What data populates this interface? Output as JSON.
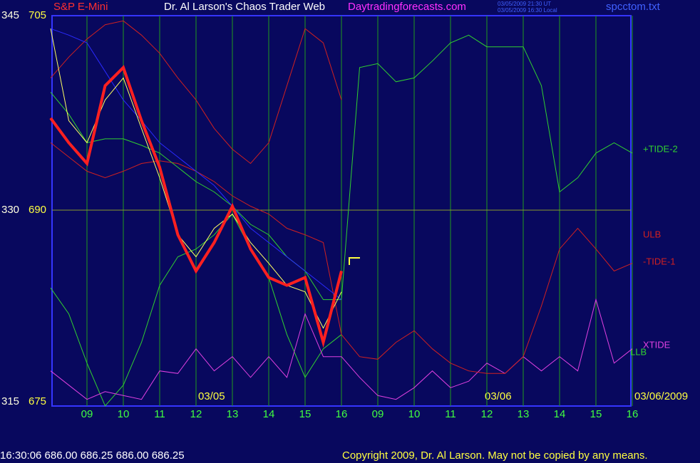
{
  "header": {
    "symbol": "S&P E-Mini",
    "title": "Dr. Al Larson's Chaos Trader Web",
    "site": "Daytradingforecasts.com",
    "stamp_ut": "03/05/2009 21:30 UT",
    "stamp_local": "03/05/2009 16:30 Local",
    "file": "spcctom.txt"
  },
  "footer": {
    "quote": "16:30:06  686.00 686.25 686.00 686.25",
    "copyright": "Copyright 2009, Dr. Al Larson. May not be copied by any means."
  },
  "chart_data": {
    "type": "line",
    "x": [
      0,
      0.5,
      1,
      1.5,
      2,
      2.5,
      3,
      3.5,
      4,
      4.5,
      5,
      5.5,
      6,
      6.5,
      7,
      7.5,
      8,
      8.5,
      9,
      9.5,
      10,
      10.5,
      11,
      11.5,
      12,
      12.5,
      13,
      13.5,
      14,
      14.5,
      15,
      15.5,
      16
    ],
    "xlim": [
      0,
      16.2
    ],
    "xticks": [
      {
        "value": 1,
        "label": "09"
      },
      {
        "value": 2,
        "label": "10"
      },
      {
        "value": 3,
        "label": "11"
      },
      {
        "value": 4,
        "label": "12"
      },
      {
        "value": 5,
        "label": "13"
      },
      {
        "value": 6,
        "label": "14"
      },
      {
        "value": 7,
        "label": "15"
      },
      {
        "value": 8,
        "label": "16"
      },
      {
        "value": 9,
        "label": "09"
      },
      {
        "value": 10,
        "label": "10"
      },
      {
        "value": 11,
        "label": "11"
      },
      {
        "value": 12,
        "label": "12"
      },
      {
        "value": 13,
        "label": "13"
      },
      {
        "value": 14,
        "label": "14"
      },
      {
        "value": 15,
        "label": "15"
      },
      {
        "value": 16,
        "label": "16"
      }
    ],
    "ylim": [
      675,
      705
    ],
    "yticks": [
      675,
      690,
      705
    ],
    "y2lim": [
      315,
      345
    ],
    "y2ticks": [
      315,
      330,
      345
    ],
    "grid": true,
    "date_labels": [
      "03/05",
      "03/06",
      "03/06/2009"
    ],
    "series": [
      {
        "color": "#ff2020",
        "values": [
          697.1,
          695.2,
          693.6,
          699.6,
          701.0,
          696.9,
          693.3,
          688.1,
          685.3,
          687.5,
          690.3,
          687.0,
          684.8,
          684.2,
          684.8,
          679.8,
          685.3,
          null,
          null,
          null,
          null,
          null,
          null,
          null,
          null,
          null,
          null,
          null,
          null,
          null,
          null,
          null,
          null
        ]
      },
      {
        "color": "#ffff60",
        "values": [
          704.0,
          696.9,
          695.2,
          698.5,
          700.2,
          696.3,
          692.5,
          688.1,
          686.4,
          688.6,
          689.7,
          687.5,
          685.9,
          684.2,
          683.7,
          680.9,
          683.7,
          null,
          null,
          null,
          null,
          null,
          null,
          null,
          null,
          null,
          null,
          null,
          null,
          null,
          null,
          null,
          null
        ]
      },
      {
        "color": "#2a2aff",
        "values": [
          704.0,
          703.5,
          702.9,
          700.7,
          698.5,
          696.9,
          695.2,
          694.1,
          693.0,
          691.9,
          690.3,
          688.6,
          687.5,
          686.4,
          685.3,
          684.2,
          683.1,
          null,
          null,
          null,
          null,
          null,
          null,
          null,
          null,
          null,
          null,
          null,
          null,
          null,
          null,
          null,
          null
        ]
      },
      {
        "name": "+TIDE-2",
        "color": "#30d030",
        "values": [
          699.1,
          697.4,
          695.2,
          695.5,
          695.5,
          695.0,
          694.4,
          693.3,
          692.2,
          691.4,
          690.3,
          688.9,
          688.1,
          686.4,
          685.3,
          683.1,
          683.1,
          701.0,
          701.3,
          699.9,
          700.2,
          701.5,
          702.9,
          703.5,
          702.6,
          702.6,
          702.6,
          699.6,
          691.4,
          692.5,
          694.4,
          695.2,
          694.4
        ]
      },
      {
        "name": "ULB",
        "color": "#d02020",
        "values": [
          700.2,
          701.8,
          703.2,
          704.3,
          704.6,
          703.5,
          702.1,
          700.2,
          698.5,
          696.3,
          694.7,
          693.6,
          695.2,
          699.6,
          704.0,
          702.9,
          698.5,
          null,
          null,
          null,
          null,
          null,
          null,
          null,
          null,
          null,
          null,
          null,
          null,
          null,
          null,
          null,
          null
        ]
      },
      {
        "name": "-TIDE-1",
        "color": "#d02020",
        "values": [
          695.2,
          694.1,
          693.0,
          692.5,
          693.0,
          693.6,
          693.8,
          693.6,
          693.0,
          692.2,
          691.1,
          690.3,
          689.7,
          688.6,
          688.1,
          687.5,
          680.4,
          678.7,
          678.5,
          679.8,
          680.7,
          679.3,
          678.2,
          677.6,
          677.4,
          677.4,
          678.7,
          682.6,
          687.0,
          688.6,
          687.0,
          685.3,
          685.9
        ]
      },
      {
        "name": "XTIDE",
        "color": "#e040e0",
        "values": [
          677.6,
          676.5,
          675.4,
          676.0,
          675.7,
          675.4,
          677.6,
          677.4,
          679.3,
          677.6,
          678.7,
          677.1,
          678.7,
          677.1,
          682.0,
          678.7,
          678.7,
          677.1,
          675.7,
          675.4,
          676.3,
          677.6,
          676.3,
          676.8,
          678.2,
          677.4,
          678.7,
          677.6,
          678.7,
          677.6,
          683.1,
          678.2,
          679.3
        ]
      },
      {
        "name": "LLB",
        "color": "#30d030",
        "values": [
          684.0,
          682.0,
          678.2,
          674.9,
          676.5,
          679.8,
          684.2,
          686.4,
          687.0,
          688.1,
          689.7,
          687.0,
          684.8,
          680.4,
          677.1,
          679.3,
          680.4,
          null,
          null,
          null,
          null,
          null,
          null,
          null,
          null,
          null,
          null,
          null,
          null,
          null,
          null,
          null,
          null
        ]
      }
    ]
  }
}
